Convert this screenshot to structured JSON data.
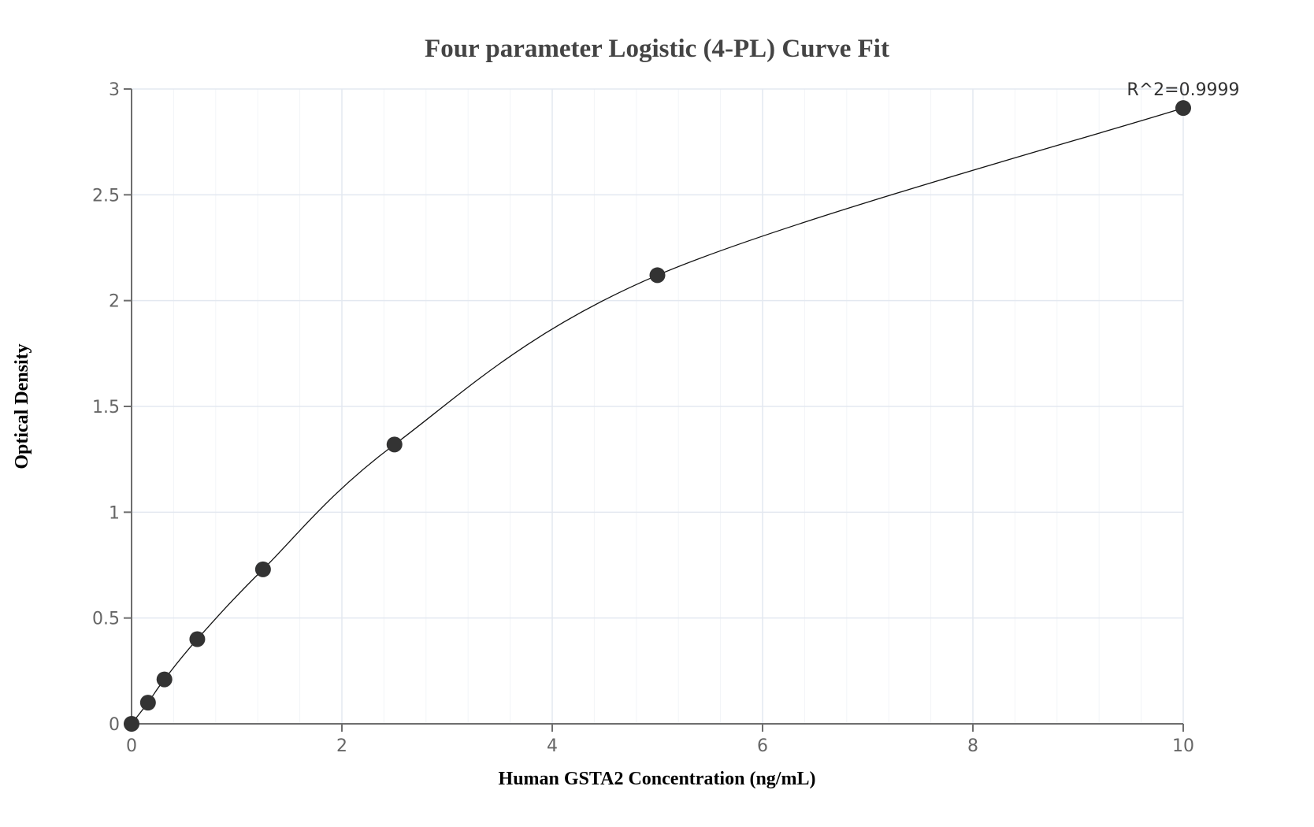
{
  "chart_data": {
    "type": "scatter",
    "title": "Four parameter Logistic (4-PL) Curve Fit",
    "xlabel": "Human GSTA2 Concentration (ng/mL)",
    "ylabel": "Optical Density",
    "xlim": [
      0,
      10
    ],
    "ylim": [
      0,
      3
    ],
    "x_ticks": [
      0,
      2,
      4,
      6,
      8,
      10
    ],
    "x_tick_labels": [
      "0",
      "2",
      "4",
      "6",
      "8",
      "10"
    ],
    "y_ticks": [
      0,
      0.5,
      1,
      1.5,
      2,
      2.5,
      3
    ],
    "y_tick_labels": [
      "0",
      "0.5",
      "1",
      "1.5",
      "2",
      "2.5",
      "3"
    ],
    "grid": true,
    "legend": null,
    "series": [
      {
        "name": "Standard points",
        "mode": "markers",
        "x": [
          0,
          0.156,
          0.3125,
          0.625,
          1.25,
          2.5,
          5,
          10
        ],
        "y": [
          0.0,
          0.1,
          0.21,
          0.4,
          0.73,
          1.32,
          2.12,
          2.91
        ]
      },
      {
        "name": "4-PL fit",
        "mode": "line",
        "x": [
          0,
          0.156,
          0.3125,
          0.625,
          1.25,
          2.5,
          5,
          10
        ],
        "y": [
          0.0,
          0.1,
          0.21,
          0.4,
          0.73,
          1.32,
          2.12,
          2.91
        ]
      }
    ],
    "annotations": [
      {
        "text": "R^2=0.9999",
        "x": 10,
        "y": 2.91
      }
    ]
  },
  "colors": {
    "marker": "#333333",
    "line": "#111111",
    "grid": "#e3e8f0",
    "title": "#444444"
  }
}
